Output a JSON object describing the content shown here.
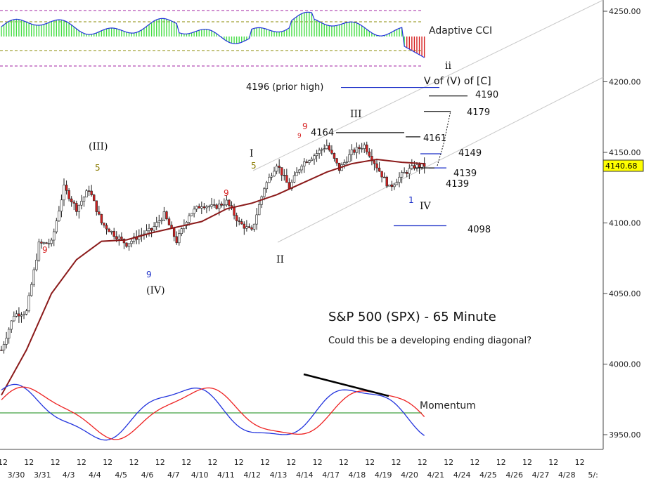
{
  "chart_data": {
    "type": "candlestick",
    "title": "S&P 500 (SPX) - 65 Minute",
    "subtitle": "Could this be a developing ending diagonal?",
    "ylim": [
      3940,
      4260
    ],
    "y_ticks": [
      "4250.00",
      "4200.00",
      "4150.00",
      "4100.00",
      "4050.00",
      "4000.00",
      "3950.00"
    ],
    "last_price": "4140.68",
    "x_tick_labels": [
      {
        "hour": "12",
        "date": "3/30"
      },
      {
        "hour": "12",
        "date": "3/31"
      },
      {
        "hour": "12",
        "date": "4/3"
      },
      {
        "hour": "12",
        "date": "4/4"
      },
      {
        "hour": "12",
        "date": "4/5"
      },
      {
        "hour": "12",
        "date": "4/6"
      },
      {
        "hour": "12",
        "date": "4/7"
      },
      {
        "hour": "12",
        "date": "4/10"
      },
      {
        "hour": "12",
        "date": "4/11"
      },
      {
        "hour": "12",
        "date": "4/12"
      },
      {
        "hour": "12",
        "date": "4/13"
      },
      {
        "hour": "12",
        "date": "4/14"
      },
      {
        "hour": "12",
        "date": "4/17"
      },
      {
        "hour": "12",
        "date": "4/18"
      },
      {
        "hour": "12",
        "date": "4/19"
      },
      {
        "hour": "12",
        "date": "4/20"
      },
      {
        "hour": "12",
        "date": "4/21"
      },
      {
        "hour": "12",
        "date": "4/24"
      },
      {
        "hour": "12",
        "date": "4/25"
      },
      {
        "hour": "12",
        "date": "4/26"
      },
      {
        "hour": "12",
        "date": "4/27"
      },
      {
        "hour": "12",
        "date": "4/28"
      },
      {
        "hour": "12",
        "date": "5/:"
      }
    ],
    "price_path": [
      [
        0,
        4010
      ],
      [
        5,
        4035
      ],
      [
        10,
        4037
      ],
      [
        15,
        4085
      ],
      [
        20,
        4086
      ],
      [
        25,
        4125
      ],
      [
        30,
        4110
      ],
      [
        35,
        4124
      ],
      [
        40,
        4100
      ],
      [
        45,
        4092
      ],
      [
        50,
        4085
      ],
      [
        55,
        4091
      ],
      [
        60,
        4095
      ],
      [
        65,
        4106
      ],
      [
        70,
        4087
      ],
      [
        75,
        4106
      ],
      [
        80,
        4113
      ],
      [
        85,
        4111
      ],
      [
        90,
        4115
      ],
      [
        95,
        4100
      ],
      [
        100,
        4094
      ],
      [
        105,
        4125
      ],
      [
        110,
        4142
      ],
      [
        115,
        4125
      ],
      [
        120,
        4142
      ],
      [
        125,
        4148
      ],
      [
        130,
        4155
      ],
      [
        135,
        4138
      ],
      [
        140,
        4150
      ],
      [
        145,
        4155
      ],
      [
        150,
        4140
      ],
      [
        155,
        4125
      ],
      [
        160,
        4134
      ],
      [
        165,
        4140
      ],
      [
        169,
        4140.68
      ]
    ],
    "sma": [
      [
        0,
        3978
      ],
      [
        10,
        4010
      ],
      [
        20,
        4050
      ],
      [
        30,
        4074
      ],
      [
        40,
        4087
      ],
      [
        50,
        4088
      ],
      [
        60,
        4093
      ],
      [
        70,
        4097
      ],
      [
        80,
        4101
      ],
      [
        90,
        4110
      ],
      [
        100,
        4114
      ],
      [
        110,
        4120
      ],
      [
        120,
        4128
      ],
      [
        130,
        4136
      ],
      [
        140,
        4142
      ],
      [
        150,
        4145
      ],
      [
        160,
        4143
      ],
      [
        169,
        4142
      ]
    ],
    "horizontal_levels": [
      {
        "label": "4196 (prior high)",
        "value": 4196
      },
      {
        "label": "4190",
        "value": 4190
      },
      {
        "label": "4179",
        "value": 4179
      },
      {
        "label": "4164",
        "value": 4164
      },
      {
        "label": "4161",
        "value": 4161
      },
      {
        "label": "4149",
        "value": 4149
      },
      {
        "label": "4139",
        "value": 4139
      },
      {
        "label": "4139",
        "value": 4139
      },
      {
        "label": "4098",
        "value": 4098
      }
    ],
    "wave_labels": [
      "(III)",
      "(IV)",
      "I",
      "II",
      "III",
      "IV",
      "ii",
      "V of (V) of [C]"
    ],
    "count_labels": [
      "9",
      "5",
      "9",
      "9",
      "5",
      "9",
      "9",
      "1"
    ],
    "indicators": [
      {
        "name": "Adaptive CCI"
      },
      {
        "name": "Momentum"
      }
    ],
    "colors": {
      "bull": "#ffffff",
      "bear": "#d62020",
      "sma": "#8b1a1a",
      "level": "#1a2ec8",
      "cci_bar": "#44dd44",
      "momentum_a": "#2233dd",
      "momentum_b": "#ee2222",
      "zero": "#118811",
      "last_price_box": "#ffff00"
    }
  }
}
